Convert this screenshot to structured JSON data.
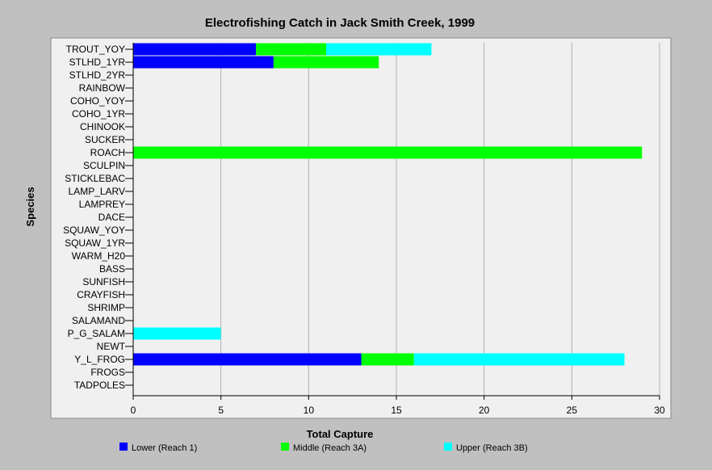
{
  "chart_data": {
    "type": "bar",
    "orientation": "horizontal",
    "stacked": true,
    "title": "Electrofishing Catch in Jack Smith Creek, 1999",
    "xlabel": "Total Capture",
    "ylabel": "Species",
    "xlim": [
      0,
      30
    ],
    "xticks": [
      0,
      5,
      10,
      15,
      20,
      25,
      30
    ],
    "grid": "vertical",
    "legend_position": "bottom",
    "categories": [
      "TROUT_YOY",
      "STLHD_1YR",
      "STLHD_2YR",
      "RAINBOW",
      "COHO_YOY",
      "COHO_1YR",
      "CHINOOK",
      "SUCKER",
      "ROACH",
      "SCULPIN",
      "STICKLEBAC",
      "LAMP_LARV",
      "LAMPREY",
      "DACE",
      "SQUAW_YOY",
      "SQUAW_1YR",
      "WARM_H20",
      "BASS",
      "SUNFISH",
      "CRAYFISH",
      "SHRIMP",
      "SALAMAND",
      "P_G_SALAM",
      "NEWT",
      "Y_L_FROG",
      "FROGS",
      "TADPOLES"
    ],
    "series": [
      {
        "name": "Lower (Reach 1)",
        "color": "#0000ff",
        "values": [
          7,
          8,
          0,
          0,
          0,
          0,
          0,
          0,
          0,
          0,
          0,
          0,
          0,
          0,
          0,
          0,
          0,
          0,
          0,
          0,
          0,
          0,
          0,
          0,
          13,
          0,
          0
        ]
      },
      {
        "name": "Middle (Reach 3A)",
        "color": "#00ff00",
        "values": [
          4,
          6,
          0,
          0,
          0,
          0,
          0,
          0,
          29,
          0,
          0,
          0,
          0,
          0,
          0,
          0,
          0,
          0,
          0,
          0,
          0,
          0,
          0,
          0,
          3,
          0,
          0
        ]
      },
      {
        "name": "Upper (Reach 3B)",
        "color": "#00ffff",
        "values": [
          6,
          0,
          0,
          0,
          0,
          0,
          0,
          0,
          0,
          0,
          0,
          0,
          0,
          0,
          0,
          0,
          0,
          0,
          0,
          0,
          0,
          0,
          5,
          0,
          12,
          0,
          0
        ]
      }
    ]
  },
  "colors": {
    "background": "#c0c0c0",
    "plot_background": "#f0f0f0",
    "gridline": "#b0b0b0"
  }
}
